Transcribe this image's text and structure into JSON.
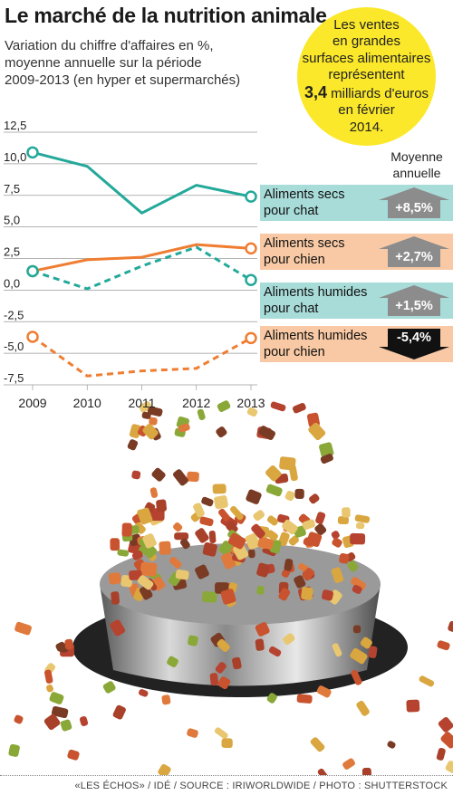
{
  "title": "Le marché de la nutrition animale",
  "subtitle_lines": [
    "Variation du chiffre d'affaires en %,",
    "moyenne annuelle sur la période",
    "2009-2013 (en hyper et supermarchés)"
  ],
  "bubble": {
    "line1": "Les ventes",
    "line2": "en grandes",
    "line3": "surfaces alimentaires",
    "line4": "représentent",
    "value": "3,4",
    "line5_rest": " milliards d'euros",
    "line6": "en février",
    "line7": "2014.",
    "color": "#fbe82a"
  },
  "avg_header": [
    "Moyenne",
    "annuelle"
  ],
  "colors": {
    "teal": "#23a99a",
    "orange": "#ef7d32",
    "teal_bg": "#a8dcd9",
    "orange_bg": "#f8c9a4",
    "arrow_grey": "#8c8c8c",
    "arrow_black": "#111111"
  },
  "legend": [
    {
      "line1": "Aliments secs",
      "line2": "pour chat",
      "avg": "+8,5%",
      "bg": "#a8dcd9",
      "direction": "up"
    },
    {
      "line1": "Aliments secs",
      "line2": "pour chien",
      "avg": "+2,7%",
      "bg": "#f8c9a4",
      "direction": "up"
    },
    {
      "line1": "Aliments humides",
      "line2": "pour chat",
      "avg": "+1,5%",
      "bg": "#a8dcd9",
      "direction": "up"
    },
    {
      "line1": "Aliments humides",
      "line2": "pour chien",
      "avg": "-5,4%",
      "bg": "#f8c9a4",
      "direction": "down"
    }
  ],
  "chart_data": {
    "type": "line",
    "x": [
      2009,
      2010,
      2011,
      2012,
      2013
    ],
    "ylim": [
      -7.5,
      12.5
    ],
    "yticks": [
      "12,5",
      "10,0",
      "7,5",
      "5,0",
      "2,5",
      "0,0",
      "-2,5",
      "-5,0",
      "-7,5"
    ],
    "ytick_values": [
      12.5,
      10,
      7.5,
      5,
      2.5,
      0,
      -2.5,
      -5,
      -7.5
    ],
    "xticks": [
      "2009",
      "2010",
      "2011",
      "2012",
      "2013"
    ],
    "grid": "horizontal",
    "legend_position": "right",
    "series": [
      {
        "name": "Aliments secs pour chat",
        "values": [
          10.9,
          9.8,
          6.1,
          8.3,
          7.4
        ],
        "color": "#23a99a",
        "dash": "solid"
      },
      {
        "name": "Aliments secs pour chien",
        "values": [
          1.5,
          2.4,
          2.6,
          3.6,
          3.3
        ],
        "color": "#ef7d32",
        "dash": "solid"
      },
      {
        "name": "Aliments humides pour chat",
        "values": [
          1.5,
          0.1,
          1.9,
          3.4,
          0.8
        ],
        "color": "#23a99a",
        "dash": "dashed"
      },
      {
        "name": "Aliments humides pour chien",
        "values": [
          -3.7,
          -6.8,
          -6.4,
          -6.2,
          -3.8
        ],
        "color": "#ef7d32",
        "dash": "dashed"
      }
    ]
  },
  "source": "«LES ÉCHOS» / IDÉ / SOURCE : IRIWORLDWIDE / PHOTO : SHUTTERSTOCK"
}
